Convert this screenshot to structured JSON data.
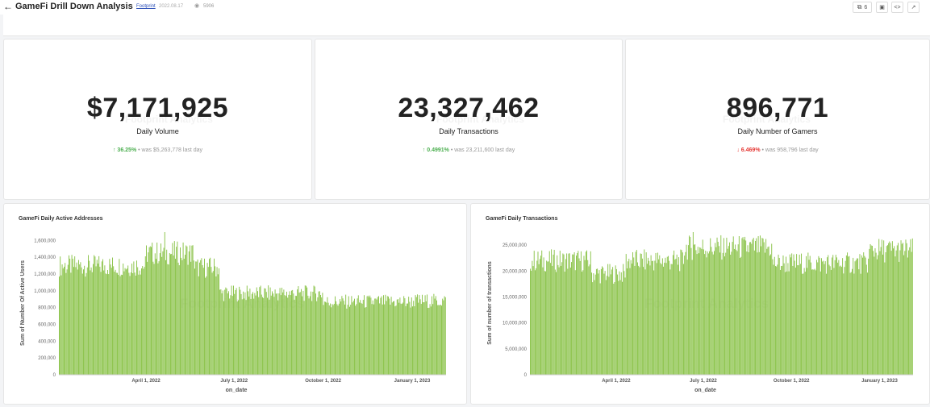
{
  "header": {
    "back_icon": "arrow-left-icon",
    "title": "GameFi Drill Down Analysis",
    "author": "Footprint",
    "date": "2022.08.17",
    "views": "5906",
    "views_icon": "eye-icon",
    "toolbar": {
      "copy_count": "6",
      "copy_icon": "copy-icon",
      "camera_icon": "camera-icon",
      "code_icon": "code-icon",
      "external_icon": "external-link-icon"
    }
  },
  "kpis": [
    {
      "value": "$7,171,925",
      "label": "Daily Volume",
      "direction": "up",
      "change_pct": "36.25%",
      "was_text": " • was $5,263,778 last day"
    },
    {
      "value": "23,327,462",
      "label": "Daily Transactions",
      "direction": "up",
      "change_pct": "0.4991%",
      "was_text": " • was 23,211,600 last day"
    },
    {
      "value": "896,771",
      "label": "Daily Number of Gamers",
      "direction": "down",
      "change_pct": "6.469%",
      "was_text": " • was 958,796 last day"
    }
  ],
  "watermark": "Footprint Analytics",
  "colors": {
    "bar": "#8bc34a",
    "up": "#4caf50",
    "down": "#e53935"
  },
  "chart_data": [
    {
      "type": "bar",
      "title": "GameFi Daily Active Addresses",
      "xlabel": "on_date",
      "ylabel": "Sum of Number Of Active Users",
      "ylim": [
        0,
        1700000
      ],
      "yticks": [
        0,
        200000,
        400000,
        600000,
        800000,
        1000000,
        1200000,
        1400000,
        1600000
      ],
      "ytick_labels": [
        "0",
        "200,000",
        "400,000",
        "600,000",
        "800,000",
        "1,000,000",
        "1,200,000",
        "1,400,000",
        "1,600,000"
      ],
      "xtick_labels": [
        "April 1, 2022",
        "July 1, 2022",
        "October 1, 2022",
        "January 1, 2023"
      ],
      "grid": false,
      "segments": [
        {
          "from": "2022-01-01",
          "to": "2022-03-31",
          "approx_value": 1300000
        },
        {
          "from": "2022-04-01",
          "to": "2022-05-20",
          "approx_value": 1450000
        },
        {
          "from": "2022-05-21",
          "to": "2022-06-15",
          "approx_value": 1280000
        },
        {
          "from": "2022-06-16",
          "to": "2022-09-30",
          "approx_value": 970000
        },
        {
          "from": "2022-10-01",
          "to": "2022-12-31",
          "approx_value": 870000
        },
        {
          "from": "2023-01-01",
          "to": "2023-02-05",
          "approx_value": 880000
        }
      ],
      "peak": {
        "date": "2022-04-20",
        "value": 1700000
      }
    },
    {
      "type": "bar",
      "title": "GameFi Daily Transactions",
      "xlabel": "on_date",
      "ylabel": "Sum of number of transactions",
      "ylim": [
        0,
        27500000
      ],
      "yticks": [
        0,
        5000000,
        10000000,
        15000000,
        20000000,
        25000000
      ],
      "ytick_labels": [
        "0",
        "5,000,000",
        "10,000,000",
        "15,000,000",
        "20,000,000",
        "25,000,000"
      ],
      "xtick_labels": [
        "April 1, 2022",
        "July 1, 2022",
        "October 1, 2022",
        "January 1, 2023"
      ],
      "grid": false,
      "segments": [
        {
          "from": "2022-01-01",
          "to": "2022-03-05",
          "approx_value": 22000000
        },
        {
          "from": "2022-03-06",
          "to": "2022-04-10",
          "approx_value": 19500000
        },
        {
          "from": "2022-04-11",
          "to": "2022-06-10",
          "approx_value": 22000000
        },
        {
          "from": "2022-06-11",
          "to": "2022-09-10",
          "approx_value": 24500000
        },
        {
          "from": "2022-09-11",
          "to": "2022-12-20",
          "approx_value": 21500000
        },
        {
          "from": "2022-12-21",
          "to": "2023-02-05",
          "approx_value": 24000000
        }
      ],
      "peak": {
        "date": "2022-06-20",
        "value": 27500000
      }
    }
  ]
}
